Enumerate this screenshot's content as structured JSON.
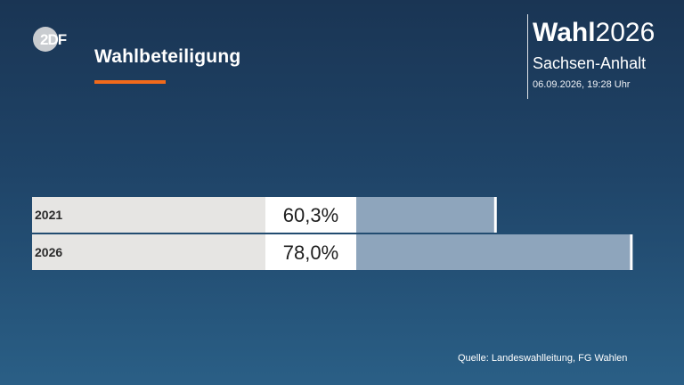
{
  "header": {
    "title": "Wahlbeteiligung",
    "logo_text": "ZDF"
  },
  "brand": {
    "wahl": "Wahl",
    "year": "2026",
    "state": "Sachsen-Anhalt",
    "timestamp": "06.09.2026, 19:28 Uhr"
  },
  "footer": {
    "source": "Quelle: Landeswahlleitung, FG Wahlen"
  },
  "colors": {
    "accent": "#f26a1b",
    "bar_fill": "#8ea5bc",
    "label_bg": "#e6e5e3",
    "value_bg": "#ffffff"
  },
  "chart_data": {
    "type": "bar",
    "orientation": "horizontal",
    "title": "Wahlbeteiligung",
    "categories": [
      "2021",
      "2026"
    ],
    "values": [
      60.3,
      78.0
    ],
    "value_labels": [
      "60,3%",
      "78,0%"
    ],
    "unit": "%",
    "xlim": [
      0,
      100
    ]
  }
}
